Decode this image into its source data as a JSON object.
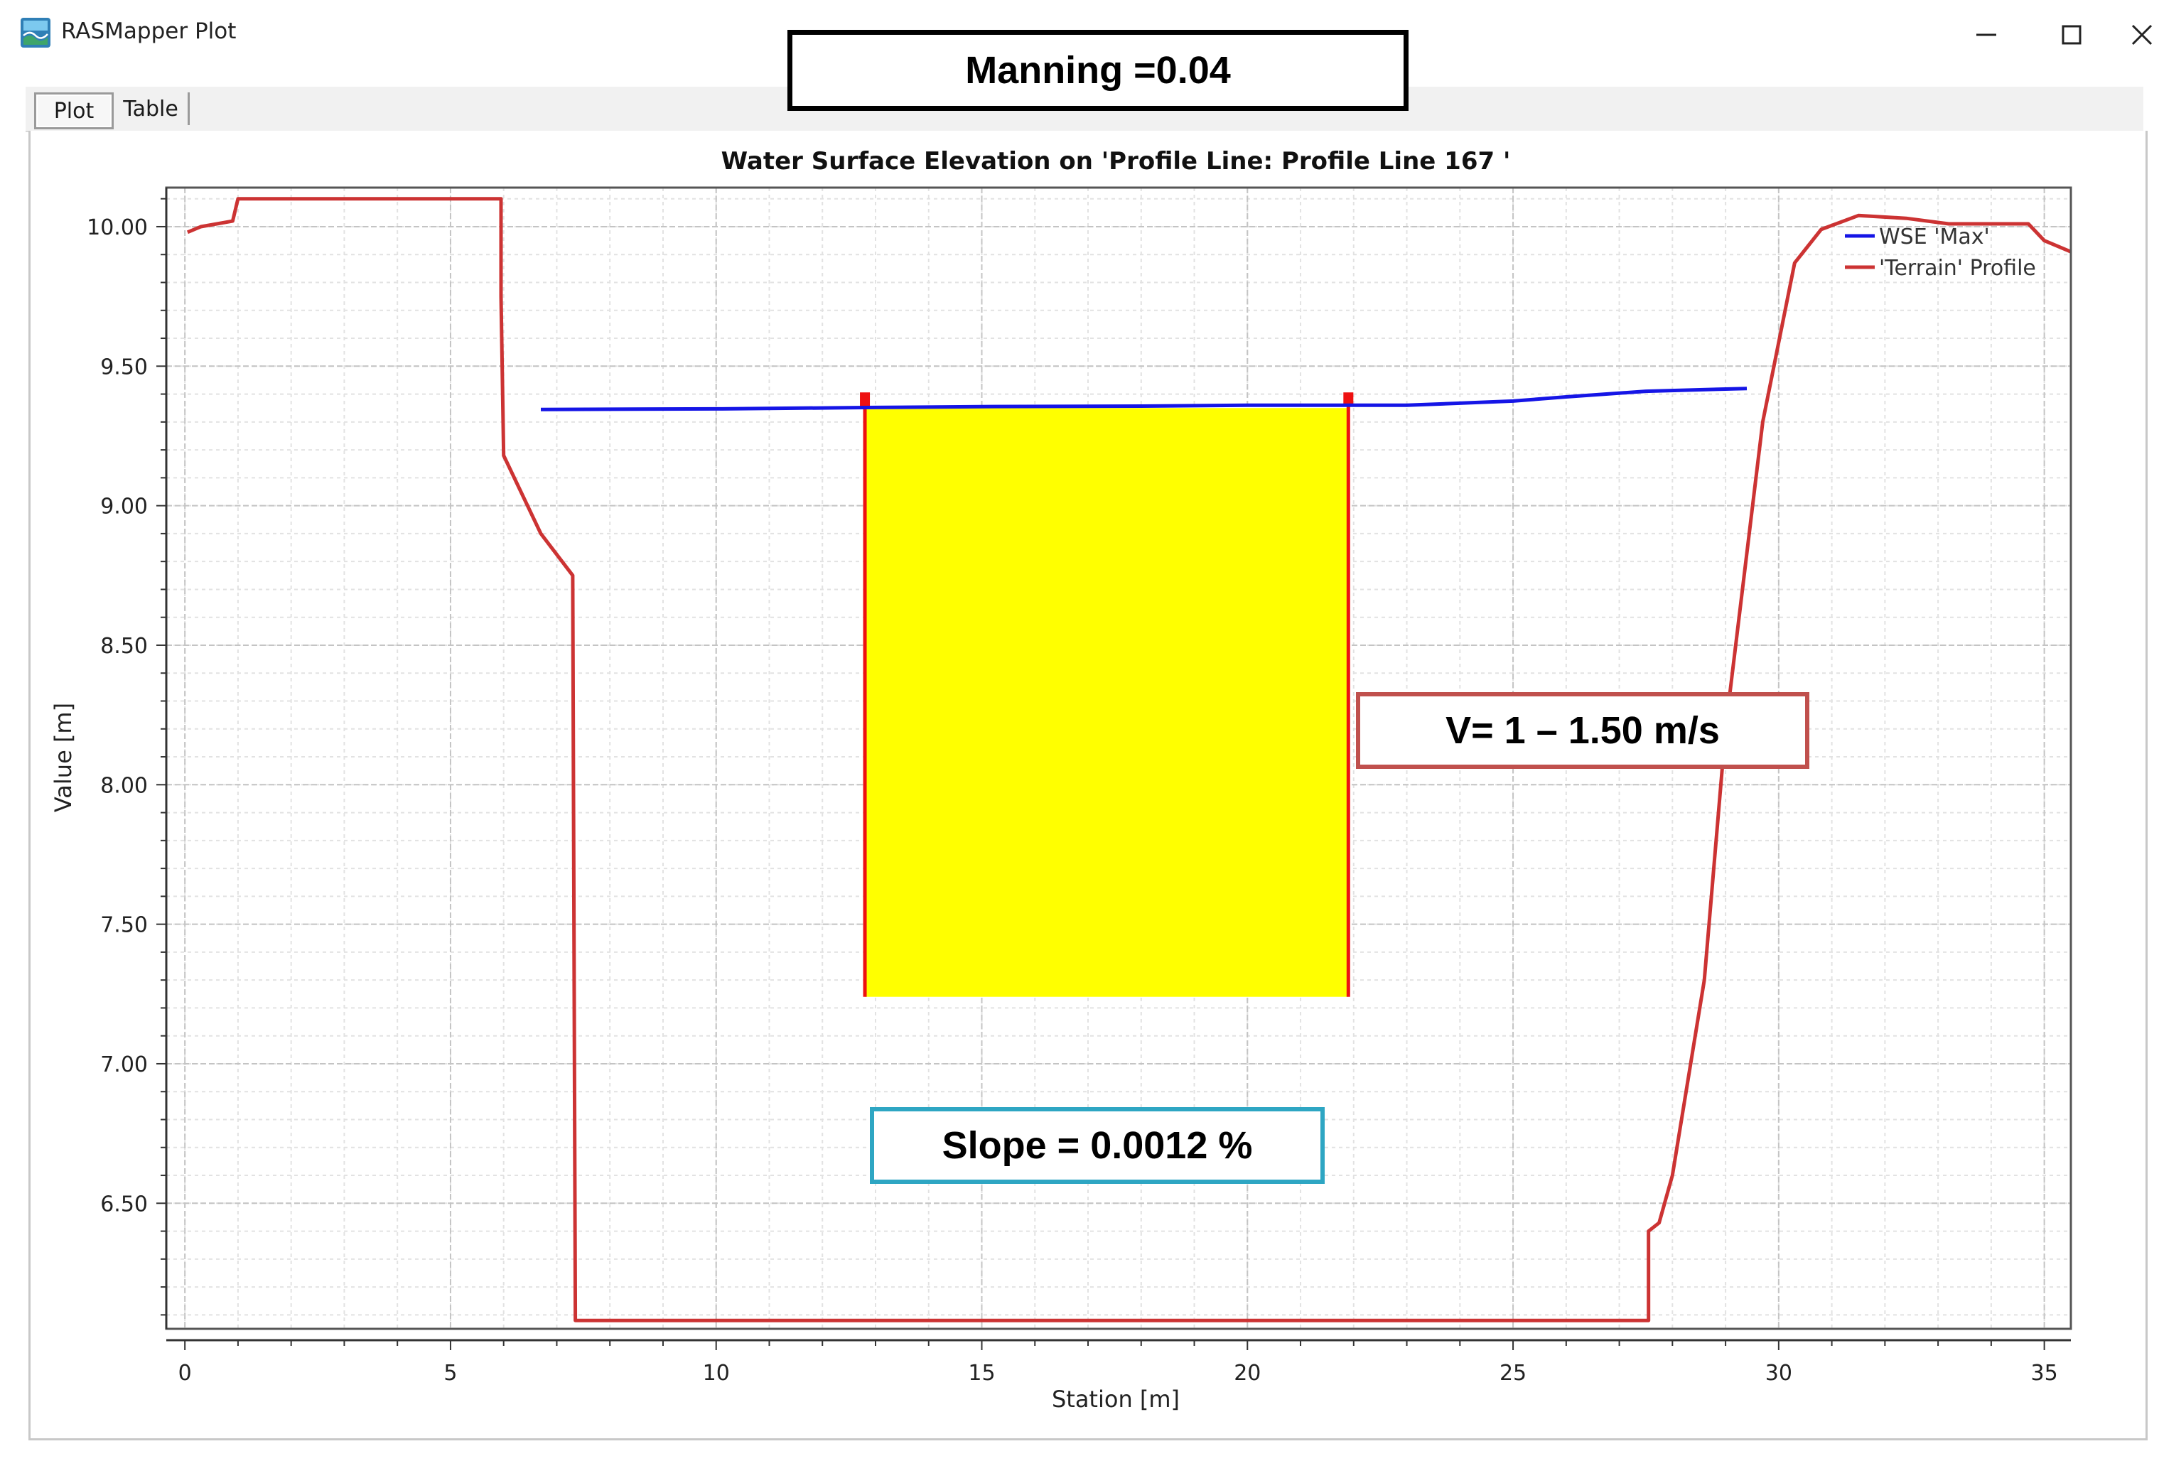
{
  "window": {
    "title": "RASMapper Plot",
    "icon": "rasmapper-app-icon",
    "controls": [
      "minimize-icon",
      "maximize-icon",
      "close-icon"
    ]
  },
  "tabs": [
    {
      "label": "Plot",
      "selected": true
    },
    {
      "label": "Table",
      "selected": false
    }
  ],
  "annotations": {
    "manning": "Manning =0.04",
    "velocity": "V= 1 – 1.50 m/s",
    "slope": "Slope = 0.0012 %"
  },
  "colors": {
    "wse": "#1515e6",
    "terrain": "#cc3333",
    "highlight_fill": "#ffff00",
    "highlight_edge": "#ee1111",
    "manning_border": "#000000",
    "velocity_border": "#c0504d",
    "slope_border": "#2ea6c3"
  },
  "chart_data": {
    "type": "line",
    "title": "Water Surface Elevation on 'Profile Line: Profile Line 167 '",
    "xlabel": "Station [m]",
    "ylabel": "Value [m]",
    "xlim": [
      -0.35,
      35.5
    ],
    "ylim": [
      6.05,
      10.14
    ],
    "xticks": [
      0,
      5,
      10,
      15,
      20,
      25,
      30,
      35
    ],
    "yticks": [
      6.5,
      7.0,
      7.5,
      8.0,
      8.5,
      9.0,
      9.5,
      10.0
    ],
    "x_tick_labels": [
      "0",
      "5",
      "10",
      "15",
      "20",
      "25",
      "30",
      "35"
    ],
    "y_tick_labels": [
      "6.50",
      "7.00",
      "7.50",
      "8.00",
      "8.50",
      "9.00",
      "9.50",
      "10.00"
    ],
    "grid": true,
    "legend": "top-right",
    "series": [
      {
        "name": "WSE 'Max'",
        "x": [
          6.7,
          10,
          13,
          15,
          18,
          20,
          22,
          23,
          25,
          26,
          27.5,
          29.4
        ],
        "y": [
          9.345,
          9.347,
          9.352,
          9.355,
          9.357,
          9.36,
          9.36,
          9.36,
          9.375,
          9.39,
          9.41,
          9.42
        ]
      },
      {
        "name": "'Terrain' Profile",
        "x": [
          0.05,
          0.3,
          0.9,
          1.0,
          5.95,
          5.95,
          6.0,
          6.7,
          7.3,
          7.35,
          27.55,
          27.55,
          27.75,
          28.0,
          28.6,
          29.0,
          29.7,
          30.3,
          30.8,
          31.5,
          32.4,
          33.2,
          34.0,
          34.7,
          35.0,
          35.5
        ],
        "y": [
          9.98,
          10.0,
          10.02,
          10.1,
          10.1,
          9.75,
          9.18,
          8.9,
          8.75,
          6.08,
          6.08,
          6.4,
          6.43,
          6.6,
          7.3,
          8.2,
          9.3,
          9.87,
          9.99,
          10.04,
          10.03,
          10.01,
          10.01,
          10.01,
          9.95,
          9.91
        ]
      }
    ],
    "highlight_region": {
      "x": [
        12.8,
        21.9
      ],
      "y": [
        7.24,
        9.35
      ]
    }
  }
}
